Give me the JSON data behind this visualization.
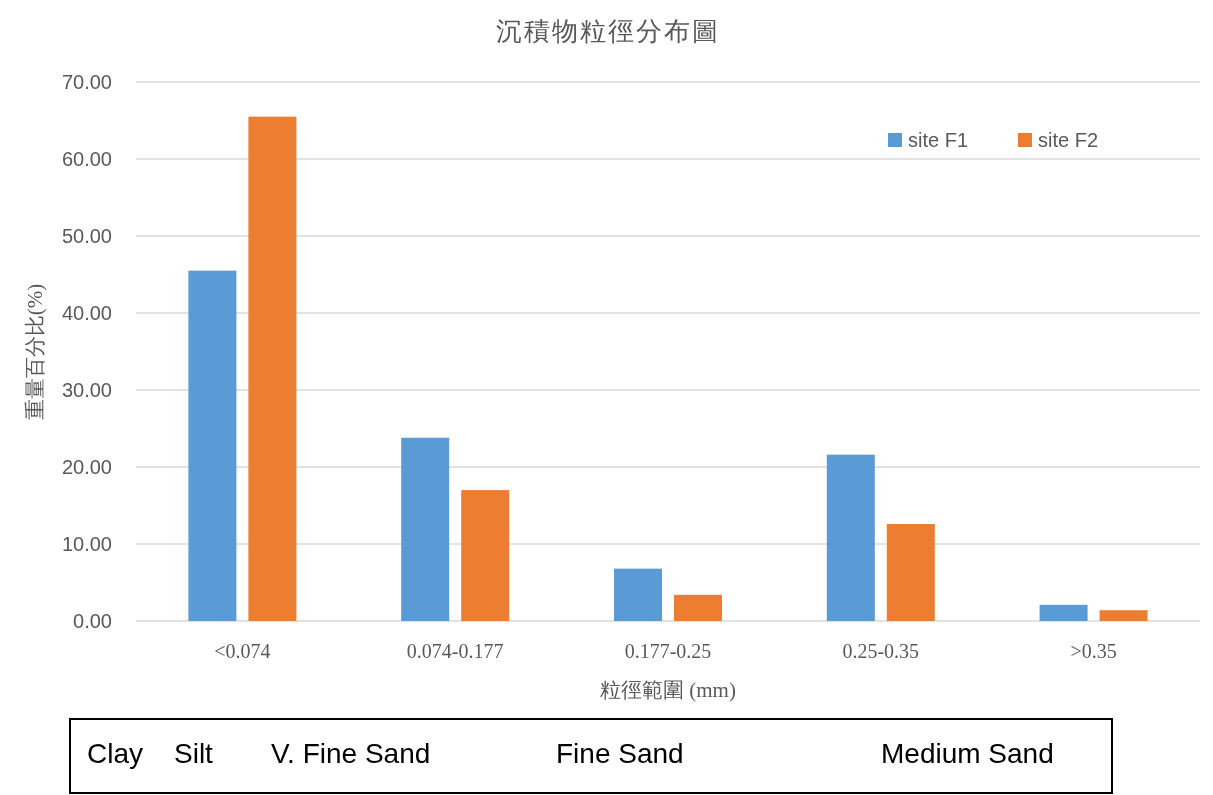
{
  "chart_data": {
    "type": "bar",
    "title": "沉積物粒徑分布圖",
    "xlabel": "粒徑範圍 (mm)",
    "ylabel": "重量百分比(%)",
    "categories": [
      "<0.074",
      "0.074-0.177",
      "0.177-0.25",
      "0.25-0.35",
      ">0.35"
    ],
    "series": [
      {
        "name": "site F1",
        "color": "#5b9bd5",
        "values": [
          45.5,
          23.8,
          6.8,
          21.6,
          2.1
        ]
      },
      {
        "name": "site F2",
        "color": "#ed7d31",
        "values": [
          65.5,
          17.0,
          3.4,
          12.6,
          1.4
        ]
      }
    ],
    "ylim": [
      0,
      70
    ],
    "yticks": [
      {
        "value": 0,
        "label": "0.00"
      },
      {
        "value": 10,
        "label": "10.00"
      },
      {
        "value": 20,
        "label": "20.00"
      },
      {
        "value": 30,
        "label": "30.00"
      },
      {
        "value": 40,
        "label": "40.00"
      },
      {
        "value": 50,
        "label": "50.00"
      },
      {
        "value": 60,
        "label": "60.00"
      },
      {
        "value": 70,
        "label": "70.00"
      }
    ],
    "grid": "y",
    "legend": "top right",
    "annotations": [
      "Clay",
      "Silt",
      "V. Fine Sand",
      "Fine Sand",
      "Medium Sand"
    ]
  }
}
